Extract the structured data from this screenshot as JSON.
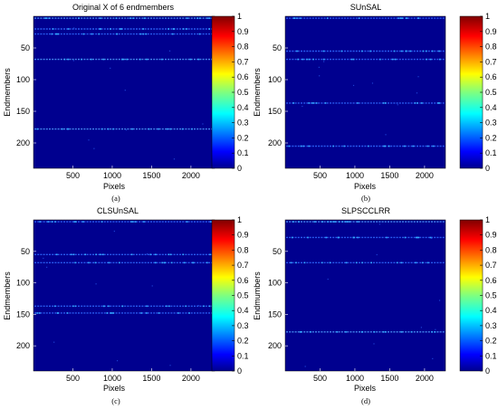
{
  "colors": {
    "background": "#00008f",
    "stripe": "#2f6bff",
    "stripe_strong": "#4fa0ff",
    "speck": "#33aaff",
    "colormap": "jet"
  },
  "chart_data": [
    {
      "type": "heatmap",
      "caption": "(a)",
      "title": "Original X of 6 endmembers",
      "xlabel": "Pixels",
      "ylabel": "Endmembers",
      "xlim": [
        0,
        2300
      ],
      "ylim": [
        0,
        240
      ],
      "xticks": [
        500,
        1000,
        1500,
        2000
      ],
      "yticks": [
        50,
        100,
        150,
        200
      ],
      "colorbar": {
        "range": [
          0,
          1
        ],
        "ticks": [
          0,
          0.1,
          0.2,
          0.3,
          0.4,
          0.5,
          0.6,
          0.7,
          0.8,
          0.9,
          1
        ]
      },
      "active_rows": [
        {
          "row": 3,
          "value": 0.3
        },
        {
          "row": 20,
          "value": 0.25
        },
        {
          "row": 28,
          "value": 0.2
        },
        {
          "row": 68,
          "value": 0.3
        },
        {
          "row": 178,
          "value": 0.35
        }
      ]
    },
    {
      "type": "heatmap",
      "caption": "(b)",
      "title": "SUnSAL",
      "xlabel": "Pixels",
      "ylabel": "Endmembers",
      "xlim": [
        0,
        2300
      ],
      "ylim": [
        0,
        240
      ],
      "xticks": [
        500,
        1000,
        1500,
        2000
      ],
      "yticks": [
        50,
        100,
        150,
        200
      ],
      "colorbar": {
        "range": [
          0,
          1
        ],
        "ticks": [
          0,
          0.1,
          0.2,
          0.3,
          0.4,
          0.5,
          0.6,
          0.7,
          0.8,
          0.9,
          1
        ]
      },
      "active_rows": [
        {
          "row": 3,
          "value": 0.15
        },
        {
          "row": 55,
          "value": 0.15
        },
        {
          "row": 68,
          "value": 0.2
        },
        {
          "row": 137,
          "value": 0.2
        },
        {
          "row": 205,
          "value": 0.15
        }
      ]
    },
    {
      "type": "heatmap",
      "caption": "(c)",
      "title": "CLSUnSAL",
      "xlabel": "Pixels",
      "ylabel": "Endmembers",
      "xlim": [
        0,
        2300
      ],
      "ylim": [
        0,
        240
      ],
      "xticks": [
        500,
        1000,
        1500,
        2000
      ],
      "yticks": [
        50,
        100,
        150,
        200
      ],
      "colorbar": {
        "range": [
          0,
          1
        ],
        "ticks": [
          0,
          0.1,
          0.2,
          0.3,
          0.4,
          0.5,
          0.6,
          0.7,
          0.8,
          0.9,
          1
        ]
      },
      "active_rows": [
        {
          "row": 3,
          "value": 0.15
        },
        {
          "row": 55,
          "value": 0.12
        },
        {
          "row": 68,
          "value": 0.2
        },
        {
          "row": 137,
          "value": 0.15
        },
        {
          "row": 148,
          "value": 0.12
        }
      ]
    },
    {
      "type": "heatmap",
      "caption": "(d)",
      "title": "SLPSCCLRR",
      "xlabel": "Pixels",
      "ylabel": "Endmumbers",
      "xlim": [
        0,
        2300
      ],
      "ylim": [
        0,
        240
      ],
      "xticks": [
        500,
        1000,
        1500,
        2000
      ],
      "yticks": [
        50,
        100,
        150,
        200
      ],
      "colorbar": {
        "range": [
          0,
          1
        ],
        "ticks": [
          0,
          0.1,
          0.2,
          0.3,
          0.4,
          0.5,
          0.6,
          0.7,
          0.8,
          0.9,
          1
        ]
      },
      "active_rows": [
        {
          "row": 3,
          "value": 0.35
        },
        {
          "row": 28,
          "value": 0.25
        },
        {
          "row": 68,
          "value": 0.25
        },
        {
          "row": 178,
          "value": 0.3
        }
      ]
    }
  ]
}
